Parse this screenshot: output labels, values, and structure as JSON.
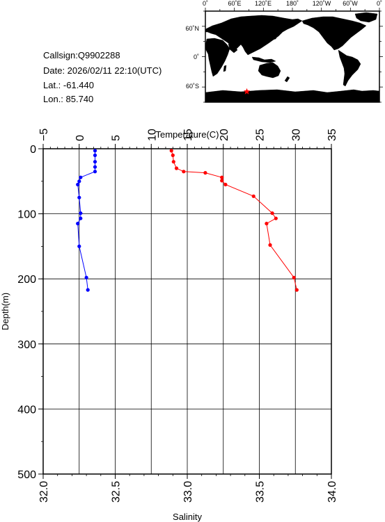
{
  "station": {
    "callsign": "Callsign:Q9902288",
    "date": "Date:  2026/02/11 22:10(UTC)",
    "lat": "Lat.:  -61.440",
    "lon": "Lon.:   85.740"
  },
  "map": {
    "top_labels": [
      "0˚",
      "60˚E",
      "120˚E",
      "180˚",
      "120˚W",
      "60˚W",
      "0˚"
    ],
    "left_labels": [
      "60˚N",
      "0˚",
      "60˚S"
    ],
    "marker": {
      "lat": -61.44,
      "lon": 85.74,
      "color": "#ff0000"
    },
    "land_color": "#bebebe",
    "ocean_color": "#ffffff"
  },
  "chart_data": {
    "type": "line",
    "ylabel": "Depth(m)",
    "y_ticks": [
      "0",
      "100",
      "200",
      "300",
      "400",
      "500"
    ],
    "ylim": [
      0,
      500
    ],
    "y_inverted": true,
    "grid": true,
    "temperature_axis": {
      "label": "Temperature(C)",
      "ticks": [
        "−5",
        "0",
        "5",
        "10",
        "15",
        "20",
        "25",
        "30",
        "35"
      ],
      "range": [
        -5,
        35
      ],
      "position": "top"
    },
    "salinity_axis": {
      "label": "Salinity",
      "ticks": [
        "32.0",
        "32.5",
        "33.0",
        "33.5",
        "34.0"
      ],
      "range": [
        32.0,
        34.0
      ],
      "position": "bottom"
    },
    "series": [
      {
        "axis": "temperature",
        "color": "#ff0000",
        "points": [
          [
            12.8,
            3
          ],
          [
            13.0,
            10
          ],
          [
            13.1,
            20
          ],
          [
            13.5,
            30
          ],
          [
            14.5,
            35
          ],
          [
            17.5,
            37
          ],
          [
            19.8,
            44
          ],
          [
            19.8,
            49
          ],
          [
            20.3,
            55
          ],
          [
            24.2,
            73
          ],
          [
            26.8,
            99
          ],
          [
            27.3,
            107
          ],
          [
            26.0,
            115
          ],
          [
            26.5,
            148
          ],
          [
            29.8,
            198
          ],
          [
            30.2,
            217
          ]
        ]
      },
      {
        "axis": "salinity",
        "color": "#0000ff",
        "points": [
          [
            32.36,
            3
          ],
          [
            32.36,
            10
          ],
          [
            32.36,
            20
          ],
          [
            32.36,
            28
          ],
          [
            32.36,
            35
          ],
          [
            32.26,
            44
          ],
          [
            32.25,
            50
          ],
          [
            32.24,
            55
          ],
          [
            32.25,
            75
          ],
          [
            32.26,
            99
          ],
          [
            32.26,
            107
          ],
          [
            32.24,
            115
          ],
          [
            32.25,
            150
          ],
          [
            32.3,
            198
          ],
          [
            32.31,
            217
          ]
        ]
      }
    ]
  }
}
